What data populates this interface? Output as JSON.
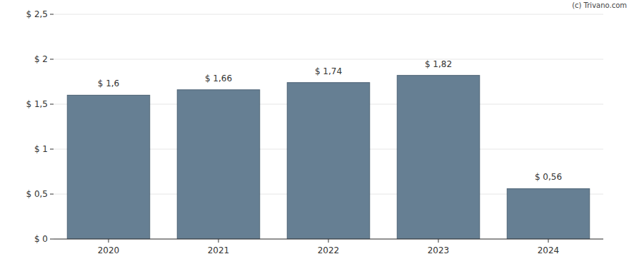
{
  "chart_data": {
    "type": "bar",
    "categories": [
      "2020",
      "2021",
      "2022",
      "2023",
      "2024"
    ],
    "values": [
      1.6,
      1.66,
      1.74,
      1.82,
      0.56
    ],
    "value_labels": [
      "$ 1,6",
      "$ 1,66",
      "$ 1,74",
      "$ 1,82",
      "$ 0,56"
    ],
    "color": "#667f93",
    "ylim": [
      0,
      2.5
    ],
    "yticks": [
      {
        "value": 0,
        "label": "$ 0"
      },
      {
        "value": 0.5,
        "label": "$ 0,5"
      },
      {
        "value": 1,
        "label": "$ 1"
      },
      {
        "value": 1.5,
        "label": "$ 1,5"
      },
      {
        "value": 2,
        "label": "$ 2"
      },
      {
        "value": 2.5,
        "label": "$ 2,5"
      }
    ],
    "grid": true,
    "data_labels": true,
    "annotations": [
      "(c) Trivano.com"
    ]
  }
}
